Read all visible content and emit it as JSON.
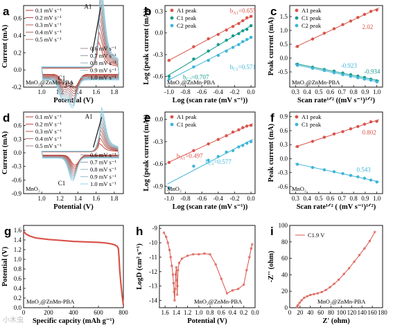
{
  "colors": {
    "red": "#d9534a",
    "teal": "#139b8c",
    "lightblue": "#3db5d8",
    "black": "#111111"
  },
  "chart_data": [
    {
      "id": "a",
      "type": "line",
      "panel_label": "a",
      "xlabel": "Potential (V)",
      "ylabel": "Current (mA)",
      "xlim": [
        0.8,
        1.9
      ],
      "ylim": [
        -0.2,
        0.75
      ],
      "xticks": [
        1.0,
        1.2,
        1.4,
        1.6,
        1.8
      ],
      "yticks": [
        -0.2,
        0.0,
        0.2,
        0.4,
        0.6
      ],
      "xtick_labels": [
        "1.0",
        "1.2",
        "1.4",
        "1.6",
        "1.8"
      ],
      "ytick_labels": [
        "-0.2",
        "0.0",
        "0.2",
        "0.4",
        "0.6"
      ],
      "legend_left": [
        "0.1 mV s⁻¹",
        "0.2 mV s⁻¹",
        "0.3 mV s⁻¹",
        "0.4 mV s⁻¹",
        "0.5 mV s⁻¹"
      ],
      "legend_right": [
        "0.6 mV s⁻¹",
        "0.7 mV s⁻¹",
        "0.8 mV s⁻¹",
        "0.9 mV s⁻¹",
        "1.0 mV s⁻¹"
      ],
      "annotations": [
        "A1",
        "C1",
        "C2"
      ],
      "sample_label": "MnO₂@ZnMn-PBA",
      "scan_rates": [
        0.1,
        0.2,
        0.3,
        0.4,
        0.5,
        0.6,
        0.7,
        0.8,
        0.9,
        1.0
      ],
      "peak_current_a1": [
        0.2,
        0.28,
        0.34,
        0.4,
        0.45,
        0.49,
        0.53,
        0.57,
        0.61,
        0.65
      ],
      "peak_potential_a1": 1.62
    },
    {
      "id": "b",
      "type": "scatter",
      "panel_label": "b",
      "xlabel": "Log (scan rate (mV s⁻¹))",
      "ylabel": "Log (peak current (mA))",
      "xlim": [
        -1.05,
        0.05
      ],
      "ylim": [
        -0.75,
        0.38
      ],
      "xticks": [
        -1.0,
        -0.8,
        -0.6,
        -0.4,
        -0.2,
        0.0
      ],
      "yticks": [
        -0.6,
        -0.3,
        0.0,
        0.3
      ],
      "xtick_labels": [
        "-1.0",
        "-0.8",
        "-0.6",
        "-0.4",
        "-0.2",
        "0.0"
      ],
      "ytick_labels": [
        "-0.6",
        "-0.3",
        "0.0",
        "0.3"
      ],
      "series": [
        {
          "name": "A1 peak",
          "color": "#d9534a",
          "x": [
            -1.0,
            -0.7,
            -0.52,
            -0.4,
            -0.3,
            -0.22,
            -0.15,
            -0.1,
            -0.05,
            0.0
          ],
          "y": [
            -0.38,
            -0.19,
            -0.08,
            -0.02,
            0.04,
            0.09,
            0.13,
            0.17,
            0.21,
            0.23
          ]
        },
        {
          "name": "C1 peak",
          "color": "#139b8c",
          "x": [
            -1.0,
            -0.7,
            -0.52,
            -0.4,
            -0.3,
            -0.22,
            -0.15,
            -0.1,
            -0.05,
            0.0
          ],
          "y": [
            -0.6,
            -0.36,
            -0.25,
            -0.16,
            -0.1,
            -0.04,
            -0.01,
            0.03,
            0.05,
            0.1
          ]
        },
        {
          "name": "C2 peak",
          "color": "#3db5d8",
          "x": [
            -1.0,
            -0.7,
            -0.52,
            -0.4,
            -0.3,
            -0.22,
            -0.15,
            -0.1,
            -0.05,
            0.0
          ],
          "y": [
            -0.64,
            -0.47,
            -0.38,
            -0.31,
            -0.25,
            -0.2,
            -0.16,
            -0.12,
            -0.09,
            -0.06
          ]
        }
      ],
      "annotations": [
        {
          "text": "b",
          "sub": "A1",
          "value": "=0.655",
          "color": "#d9534a"
        },
        {
          "text": "b",
          "sub": "C1",
          "value": "=0.571",
          "color": "#3db5d8"
        },
        {
          "text": "b",
          "sub": "C2",
          "value": "=0.707",
          "color": "#139b8c"
        }
      ],
      "sample_label": "MnO₂@ZnMn-PBA"
    },
    {
      "id": "c",
      "type": "scatter",
      "panel_label": "c",
      "xlabel": "Scan rate¹ᐟ² ((mV s⁻¹)¹ᐟ²)",
      "ylabel": "Peak current (mA)",
      "xlim": [
        0.25,
        1.05
      ],
      "ylim": [
        -1.05,
        1.9
      ],
      "xticks": [
        0.3,
        0.4,
        0.5,
        0.6,
        0.7,
        0.8,
        0.9,
        1.0
      ],
      "yticks": [
        -0.5,
        0.0,
        0.5,
        1.0,
        1.5
      ],
      "xtick_labels": [
        "0.3",
        "0.4",
        "0.5",
        "0.6",
        "0.7",
        "0.8",
        "0.9",
        "1.0"
      ],
      "ytick_labels": [
        "-0.5",
        "0.0",
        "0.5",
        "1.0",
        "1.5"
      ],
      "series": [
        {
          "name": "A1 peak",
          "color": "#d9534a",
          "x": [
            0.316,
            0.447,
            0.548,
            0.632,
            0.707,
            0.775,
            0.837,
            0.894,
            0.949,
            1.0
          ],
          "y": [
            0.42,
            0.69,
            0.9,
            1.06,
            1.21,
            1.34,
            1.47,
            1.58,
            1.69,
            1.74
          ]
        },
        {
          "name": "C1 peak",
          "color": "#139b8c",
          "x": [
            0.316,
            0.447,
            0.548,
            0.632,
            0.707,
            0.775,
            0.837,
            0.894,
            0.949,
            1.0
          ],
          "y": [
            -0.22,
            -0.33,
            -0.41,
            -0.47,
            -0.54,
            -0.6,
            -0.65,
            -0.7,
            -0.76,
            -0.82
          ]
        },
        {
          "name": "C2 peak",
          "color": "#3db5d8",
          "x": [
            0.316,
            0.447,
            0.548,
            0.632,
            0.707,
            0.775,
            0.837,
            0.894,
            0.949,
            1.0
          ],
          "y": [
            -0.26,
            -0.37,
            -0.45,
            -0.53,
            -0.6,
            -0.66,
            -0.71,
            -0.76,
            -0.8,
            -0.86
          ]
        }
      ],
      "annotations": [
        {
          "text": "2.02",
          "color": "#d9534a"
        },
        {
          "text": "-0.923",
          "color": "#3db5d8"
        },
        {
          "text": "-0.934",
          "color": "#139b8c"
        }
      ],
      "sample_label": "MnO₂@ZnMn-PBA"
    },
    {
      "id": "d",
      "type": "line",
      "panel_label": "d",
      "xlabel": "Potential (V)",
      "ylabel": "Current (mA)",
      "xlim": [
        0.8,
        1.9
      ],
      "ylim": [
        -0.9,
        0.9
      ],
      "xticks": [
        1.0,
        1.2,
        1.4,
        1.6,
        1.8
      ],
      "yticks": [
        -0.9,
        -0.6,
        -0.3,
        0.0,
        0.3,
        0.6
      ],
      "xtick_labels": [
        "1.0",
        "1.2",
        "1.4",
        "1.6",
        "1.8"
      ],
      "ytick_labels": [
        "-0.9",
        "-0.6",
        "-0.3",
        "0.0",
        "0.3",
        "0.6"
      ],
      "legend_left": [
        "0.1 mV s⁻¹",
        "0.2 mV s⁻¹",
        "0.3 mV s⁻¹",
        "0.4 mV s⁻¹",
        "0.5 mV s⁻¹"
      ],
      "legend_right": [
        "0.6 mV s⁻¹",
        "0.7 mV s⁻¹",
        "0.8 mV s⁻¹",
        "0.9 mV s⁻¹",
        "1.0 mV s⁻¹"
      ],
      "annotations": [
        "A1",
        "C1"
      ],
      "sample_label": "MnO₂",
      "scan_rates": [
        0.1,
        0.2,
        0.3,
        0.4,
        0.5,
        0.6,
        0.7,
        0.8,
        0.9,
        1.0
      ],
      "peak_current_a1": [
        0.12,
        0.2,
        0.26,
        0.32,
        0.37,
        0.42,
        0.47,
        0.53,
        0.58,
        0.63
      ],
      "peak_potential_a1": 1.63
    },
    {
      "id": "e",
      "type": "scatter",
      "panel_label": "e",
      "xlabel": "Log (scan rate (mV s⁻¹))",
      "ylabel": "Log (peak current (mA))",
      "xlim": [
        -1.05,
        0.05
      ],
      "ylim": [
        -1.0,
        0.1
      ],
      "xticks": [
        -1.0,
        -0.8,
        -0.6,
        -0.4,
        -0.2,
        0.0
      ],
      "yticks": [
        -0.9,
        -0.6,
        -0.3,
        0.0
      ],
      "xtick_labels": [
        "-1.0",
        "-0.8",
        "-0.6",
        "-0.4",
        "-0.2",
        "0.0"
      ],
      "ytick_labels": [
        "-0.9",
        "-0.6",
        "-0.3",
        "0.0"
      ],
      "series": [
        {
          "name": "A1 peak",
          "color": "#d9534a",
          "x": [
            -1.0,
            -0.7,
            -0.52,
            -0.4,
            -0.3,
            -0.22,
            -0.15,
            -0.1,
            -0.05,
            0.0
          ],
          "y": [
            -0.58,
            -0.42,
            -0.33,
            -0.27,
            -0.22,
            -0.17,
            -0.14,
            -0.11,
            -0.09,
            -0.08
          ]
        },
        {
          "name": "C1 peak",
          "color": "#3db5d8",
          "x": [
            -1.0,
            -0.7,
            -0.52,
            -0.4,
            -0.3,
            -0.22,
            -0.15,
            -0.1,
            -0.05,
            0.0
          ],
          "y": [
            -0.92,
            -0.63,
            -0.55,
            -0.5,
            -0.44,
            -0.42,
            -0.37,
            -0.35,
            -0.32,
            -0.3
          ]
        }
      ],
      "annotations": [
        {
          "text": "b",
          "sub": "A1",
          "value": "=0.497",
          "color": "#d9534a"
        },
        {
          "text": "b",
          "sub": "C1",
          "value": "=0.577",
          "color": "#3db5d8"
        }
      ],
      "sample_label": "MnO₂"
    },
    {
      "id": "f",
      "type": "scatter",
      "panel_label": "f",
      "xlabel": "Scan rate¹ᐟ² ( (mV s⁻¹)¹ᐟ²)",
      "ylabel": "Peak current (mA)",
      "xlim": [
        0.25,
        1.05
      ],
      "ylim": [
        -0.75,
        1.0
      ],
      "xticks": [
        0.3,
        0.4,
        0.5,
        0.6,
        0.7,
        0.8,
        0.9,
        1.0
      ],
      "yticks": [
        -0.6,
        -0.3,
        0.0,
        0.3,
        0.6,
        0.9
      ],
      "xtick_labels": [
        "0.3",
        "0.4",
        "0.5",
        "0.6",
        "0.7",
        "0.8",
        "0.9",
        "1.0"
      ],
      "ytick_labels": [
        "-0.6",
        "-0.3",
        "0.0",
        "0.3",
        "0.6",
        "0.9"
      ],
      "series": [
        {
          "name": "A1 peak",
          "color": "#d9534a",
          "x": [
            0.316,
            0.447,
            0.548,
            0.632,
            0.707,
            0.775,
            0.837,
            0.894,
            0.949,
            1.0
          ],
          "y": [
            0.26,
            0.37,
            0.46,
            0.53,
            0.58,
            0.64,
            0.69,
            0.74,
            0.79,
            0.8
          ]
        },
        {
          "name": "C1 peak",
          "color": "#3db5d8",
          "x": [
            0.316,
            0.447,
            0.548,
            0.632,
            0.707,
            0.775,
            0.837,
            0.894,
            0.949,
            1.0
          ],
          "y": [
            -0.12,
            -0.19,
            -0.24,
            -0.28,
            -0.32,
            -0.36,
            -0.39,
            -0.42,
            -0.46,
            -0.5
          ]
        }
      ],
      "annotations": [
        {
          "text": "0.802",
          "color": "#d9534a"
        },
        {
          "text": "0.543",
          "color": "#3db5d8"
        }
      ],
      "sample_label": "MnO₂"
    },
    {
      "id": "g",
      "type": "line",
      "panel_label": "g",
      "xlabel": "Specific capcity (mAh g⁻¹)",
      "ylabel": "Potential (V)",
      "xlim": [
        0,
        800
      ],
      "ylim": [
        0.0,
        1.7
      ],
      "xticks": [
        0,
        200,
        400,
        600,
        800
      ],
      "yticks": [
        0.0,
        0.2,
        0.4,
        0.6,
        0.8,
        1.0,
        1.2,
        1.4,
        1.6
      ],
      "xtick_labels": [
        "0",
        "200",
        "400",
        "600",
        "800"
      ],
      "ytick_labels": [
        "0.0",
        "0.2",
        "0.4",
        "0.6",
        "0.8",
        "1.0",
        "1.2",
        "1.4",
        "1.6"
      ],
      "series": [
        {
          "name": "",
          "color": "#d9534a",
          "x": [
            0,
            20,
            50,
            100,
            200,
            300,
            400,
            500,
            600,
            650,
            700,
            730,
            750,
            760,
            765,
            770,
            780,
            790,
            800
          ],
          "y": [
            1.58,
            1.52,
            1.48,
            1.44,
            1.41,
            1.39,
            1.37,
            1.36,
            1.35,
            1.34,
            1.32,
            1.3,
            1.27,
            1.22,
            1.05,
            0.8,
            0.5,
            0.25,
            0.05
          ]
        }
      ],
      "sample_label": "MnO₂@ZnMn-PBA"
    },
    {
      "id": "h",
      "type": "line",
      "panel_label": "h",
      "xlabel": "Potential (V)",
      "ylabel": "LogD (cm² s⁻¹)",
      "xlim": [
        1.7,
        0.0
      ],
      "ylim": [
        -14.5,
        -8.8
      ],
      "xticks": [
        1.6,
        1.4,
        1.2,
        1.0,
        0.8,
        0.6,
        0.4,
        0.2,
        0.0
      ],
      "yticks": [
        -14,
        -13,
        -12,
        -11,
        -10,
        -9
      ],
      "xtick_labels": [
        "1.6",
        "1.4",
        "1.2",
        "1.0",
        "0.8",
        "0.6",
        "0.4",
        "0.2",
        "0.0"
      ],
      "ytick_labels": [
        "-14",
        "-13",
        "-12",
        "-11",
        "-10",
        "-9"
      ],
      "series": [
        {
          "name": "",
          "color": "#d9534a",
          "x": [
            1.62,
            1.58,
            1.55,
            1.52,
            1.5,
            1.48,
            1.46,
            1.45,
            1.44,
            1.43,
            1.42,
            1.41,
            1.4,
            1.39,
            1.385,
            1.38,
            1.37,
            1.35,
            1.3,
            1.2,
            1.1,
            1.0,
            0.9,
            0.8,
            0.7,
            0.6,
            0.5,
            0.4,
            0.3,
            0.2,
            0.15,
            0.1,
            0.07,
            0.05
          ],
          "y": [
            -9.3,
            -9.6,
            -10.0,
            -10.5,
            -11.0,
            -11.6,
            -12.2,
            -12.8,
            -13.4,
            -14.0,
            -13.2,
            -12.2,
            -11.7,
            -12.6,
            -13.6,
            -13.0,
            -11.9,
            -11.4,
            -11.1,
            -10.9,
            -10.8,
            -10.8,
            -10.75,
            -10.8,
            -11.5,
            -12.5,
            -13.5,
            -13.3,
            -13.2,
            -12.9,
            -11.9,
            -11.0,
            -10.4,
            -10.1
          ]
        }
      ],
      "sample_label": "MnO₂@ZnMn-PBA"
    },
    {
      "id": "i",
      "type": "line",
      "panel_label": "i",
      "xlabel": "Z' (ohm)",
      "ylabel": "-Z'' (ohm)",
      "xlim": [
        0,
        180
      ],
      "ylim": [
        0,
        100
      ],
      "xticks": [
        0,
        20,
        40,
        60,
        80,
        100,
        120,
        140,
        160,
        180
      ],
      "yticks": [
        0,
        20,
        40,
        60,
        80,
        100
      ],
      "xtick_labels": [
        "0",
        "20",
        "40",
        "60",
        "80",
        "100",
        "120",
        "140",
        "160",
        "180"
      ],
      "ytick_labels": [
        "0",
        "20",
        "40",
        "60",
        "80",
        "100"
      ],
      "series": [
        {
          "name": "C1.9 V",
          "color": "#d9534a",
          "x": [
            14,
            16,
            19,
            23,
            28,
            34,
            40,
            47,
            54,
            62,
            70,
            78,
            86,
            95,
            105,
            115,
            125,
            135,
            145,
            155,
            165
          ],
          "y": [
            1,
            3,
            6,
            9,
            12,
            14,
            15.5,
            16.5,
            17.5,
            19,
            21.5,
            25,
            29,
            34,
            41,
            48,
            56,
            64,
            72,
            81,
            92
          ]
        }
      ],
      "sample_label": "MnO₂@ZnMn-PBA"
    }
  ],
  "watermark": "小木虫"
}
